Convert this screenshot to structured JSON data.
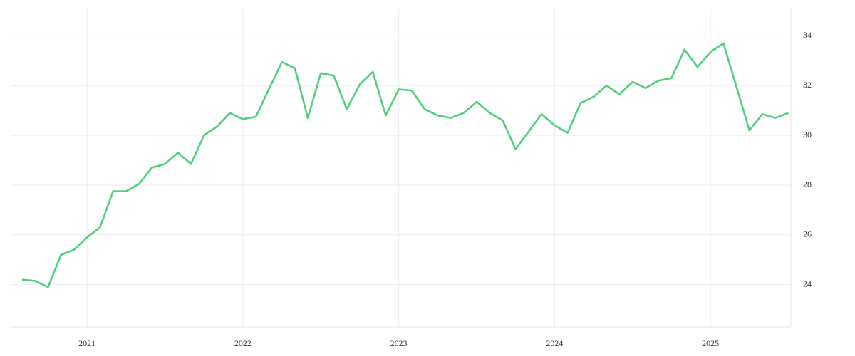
{
  "chart_data": {
    "type": "line",
    "x": [
      2020.5833,
      2020.6667,
      2020.75,
      2020.8333,
      2020.9167,
      2021.0,
      2021.0833,
      2021.1667,
      2021.25,
      2021.3333,
      2021.4167,
      2021.5,
      2021.5833,
      2021.6667,
      2021.75,
      2021.8333,
      2021.9167,
      2022.0,
      2022.0833,
      2022.1667,
      2022.25,
      2022.3333,
      2022.4167,
      2022.5,
      2022.5833,
      2022.6667,
      2022.75,
      2022.8333,
      2022.9167,
      2023.0,
      2023.0833,
      2023.1667,
      2023.25,
      2023.3333,
      2023.4167,
      2023.5,
      2023.5833,
      2023.6667,
      2023.75,
      2023.8333,
      2023.9167,
      2024.0,
      2024.0833,
      2024.1667,
      2024.25,
      2024.3333,
      2024.4167,
      2024.5,
      2024.5833,
      2024.6667,
      2024.75,
      2024.8333,
      2024.9167,
      2025.0,
      2025.0833,
      2025.1667,
      2025.25,
      2025.3333,
      2025.4167,
      2025.5
    ],
    "series": [
      {
        "color": "#4fd07a",
        "values": [
          24.2,
          24.15,
          23.9,
          25.2,
          25.4,
          25.9,
          26.3,
          27.75,
          27.75,
          28.05,
          28.7,
          28.85,
          29.3,
          28.85,
          30.0,
          30.35,
          30.9,
          30.65,
          30.75,
          31.85,
          32.95,
          32.7,
          30.7,
          32.5,
          32.4,
          31.05,
          32.05,
          32.55,
          30.8,
          31.85,
          31.8,
          31.05,
          30.8,
          30.7,
          30.9,
          31.35,
          30.9,
          30.6,
          29.45,
          30.15,
          30.85,
          30.4,
          30.1,
          31.3,
          31.55,
          32.0,
          31.65,
          32.15,
          31.9,
          32.2,
          32.3,
          33.45,
          32.75,
          33.35,
          33.7,
          31.95,
          30.2,
          30.85,
          30.7,
          30.9
        ]
      }
    ],
    "xlim": [
      2020.51,
      2025.516
    ],
    "xticks": [
      2021,
      2022,
      2023,
      2024,
      2025
    ],
    "ylim": [
      22.3,
      35.1
    ],
    "yticks": [
      24,
      26,
      28,
      30,
      32,
      34
    ],
    "grid": true,
    "y_axis_side": "right"
  }
}
